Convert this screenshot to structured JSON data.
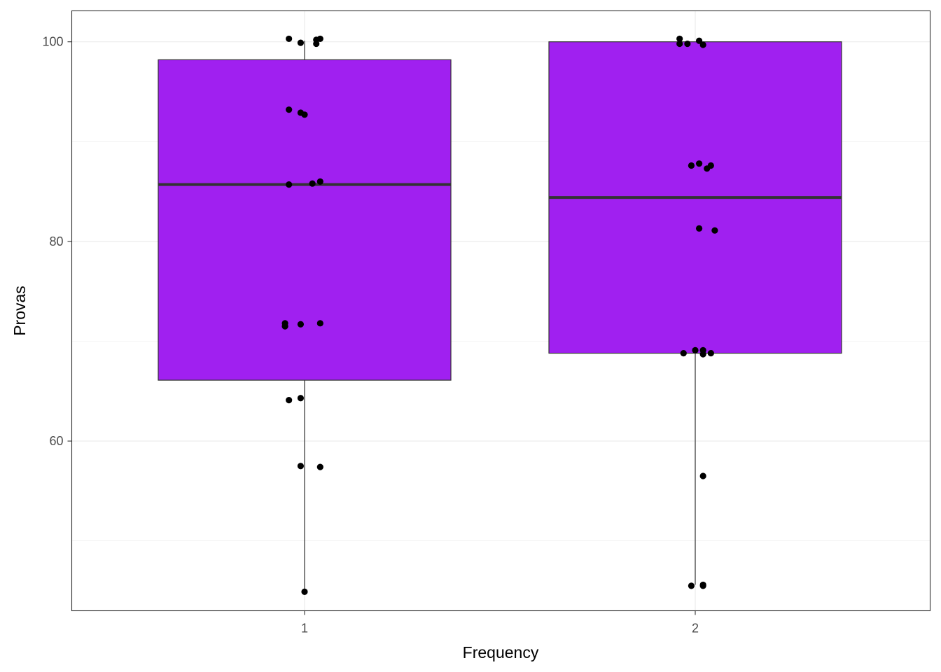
{
  "chart_data": {
    "type": "boxplot",
    "xlabel": "Frequency",
    "ylabel": "Provas",
    "ylim": [
      43.0,
      103.1
    ],
    "y_ticks": [
      60,
      80,
      100
    ],
    "y_minor_ticks": [
      50,
      70,
      90
    ],
    "categories": [
      "1",
      "2"
    ],
    "grid": true,
    "legend": "none",
    "colors": {
      "box_fill": "#A020F0",
      "box_stroke": "#333333",
      "median": "#333333",
      "points": "#000000",
      "grid": "#ebebeb",
      "panel_border": "#333333"
    },
    "boxes": [
      {
        "category": "1",
        "lower_whisker": 44.9,
        "q1": 66.1,
        "median": 85.7,
        "q3": 98.2,
        "upper_whisker": 100.1
      },
      {
        "category": "2",
        "lower_whisker": 45.6,
        "q1": 68.8,
        "median": 84.4,
        "q3": 100.0,
        "upper_whisker": 100.0
      }
    ],
    "points": [
      {
        "x": 0.96,
        "y": 100.3
      },
      {
        "x": 0.99,
        "y": 99.9
      },
      {
        "x": 1.03,
        "y": 100.2
      },
      {
        "x": 1.04,
        "y": 100.3
      },
      {
        "x": 1.03,
        "y": 99.8
      },
      {
        "x": 0.96,
        "y": 93.2
      },
      {
        "x": 0.99,
        "y": 92.9
      },
      {
        "x": 1.0,
        "y": 92.7
      },
      {
        "x": 0.96,
        "y": 85.7
      },
      {
        "x": 1.02,
        "y": 85.8
      },
      {
        "x": 1.04,
        "y": 86.0
      },
      {
        "x": 0.95,
        "y": 71.8
      },
      {
        "x": 0.95,
        "y": 71.5
      },
      {
        "x": 0.99,
        "y": 71.7
      },
      {
        "x": 1.04,
        "y": 71.8
      },
      {
        "x": 0.96,
        "y": 64.1
      },
      {
        "x": 0.99,
        "y": 64.3
      },
      {
        "x": 0.99,
        "y": 57.5
      },
      {
        "x": 1.04,
        "y": 57.4
      },
      {
        "x": 1.0,
        "y": 44.9
      },
      {
        "x": 1.96,
        "y": 100.3
      },
      {
        "x": 1.96,
        "y": 99.8
      },
      {
        "x": 1.98,
        "y": 99.8
      },
      {
        "x": 2.01,
        "y": 100.1
      },
      {
        "x": 2.02,
        "y": 99.7
      },
      {
        "x": 1.99,
        "y": 87.6
      },
      {
        "x": 2.01,
        "y": 87.8
      },
      {
        "x": 2.03,
        "y": 87.3
      },
      {
        "x": 2.04,
        "y": 87.6
      },
      {
        "x": 2.01,
        "y": 81.3
      },
      {
        "x": 2.05,
        "y": 81.1
      },
      {
        "x": 1.97,
        "y": 68.8
      },
      {
        "x": 2.0,
        "y": 69.1
      },
      {
        "x": 2.02,
        "y": 69.1
      },
      {
        "x": 2.02,
        "y": 68.7
      },
      {
        "x": 2.04,
        "y": 68.8
      },
      {
        "x": 2.02,
        "y": 56.5
      },
      {
        "x": 1.99,
        "y": 45.5
      },
      {
        "x": 2.02,
        "y": 45.6
      },
      {
        "x": 2.02,
        "y": 45.5
      }
    ]
  }
}
